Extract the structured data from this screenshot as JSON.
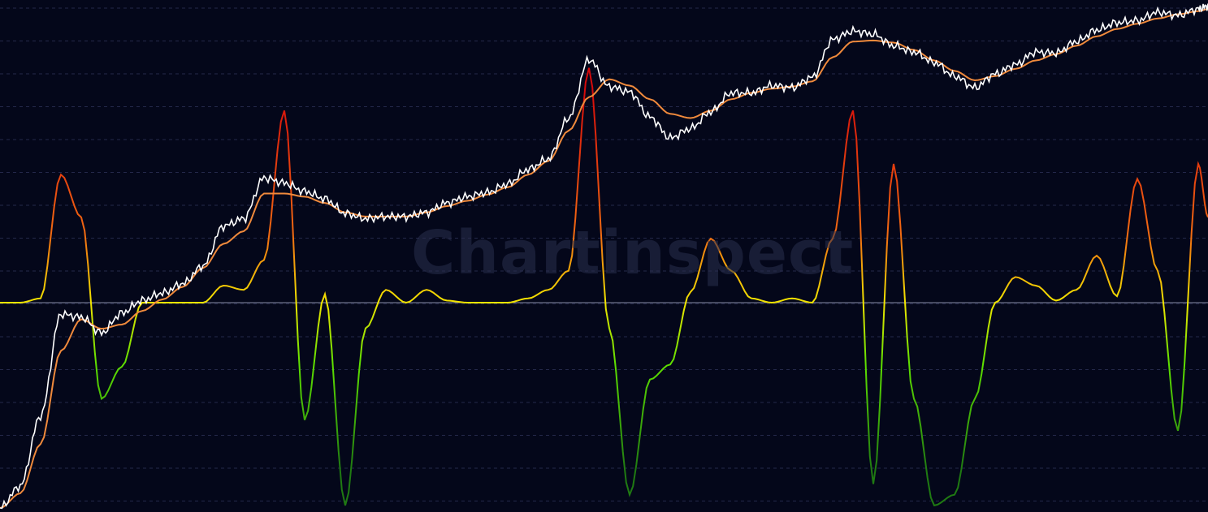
{
  "watermark": {
    "text": "Chartinspect",
    "icon": "chartinspect-logo-icon"
  },
  "colors": {
    "background": "#04071a",
    "grid": "#24284a",
    "zero_line": "#8a8fa8",
    "price": "#ffffff",
    "moving_average": "#f08a3c",
    "oscillator_high": "#d60a0a",
    "oscillator_mid": "#f2e600",
    "oscillator_low": "#1f7a12"
  },
  "chart_data": {
    "type": "line",
    "title": "",
    "xlabel": "",
    "ylabel": "",
    "grid": true,
    "x": [
      0,
      25,
      50,
      75,
      100,
      125,
      150,
      175,
      200,
      225,
      250,
      275,
      300,
      325,
      350,
      375,
      400,
      425,
      450,
      475,
      500,
      525,
      550,
      575,
      600,
      625,
      650,
      675,
      700,
      725,
      750,
      775,
      800,
      825,
      850,
      875,
      900,
      925,
      950,
      975,
      1000,
      1025,
      1050,
      1075,
      1100,
      1125,
      1150,
      1175,
      1200,
      1225,
      1250,
      1275,
      1300,
      1325,
      1350,
      1375,
      1400,
      1425,
      1450,
      1475,
      1487
    ],
    "series": [
      {
        "role": "price",
        "values": [
          0.6,
          0.81,
          1.48,
          2.45,
          2.42,
          2.27,
          2.46,
          2.58,
          2.65,
          2.74,
          2.91,
          3.29,
          3.36,
          3.75,
          3.7,
          3.62,
          3.55,
          3.41,
          3.36,
          3.38,
          3.38,
          3.42,
          3.51,
          3.57,
          3.61,
          3.69,
          3.83,
          3.93,
          4.32,
          4.88,
          4.62,
          4.57,
          4.33,
          4.13,
          4.22,
          4.38,
          4.56,
          4.56,
          4.63,
          4.61,
          4.71,
          5.07,
          5.15,
          5.12,
          5.01,
          4.95,
          4.85,
          4.72,
          4.61,
          4.74,
          4.83,
          4.95,
          4.94,
          5.05,
          5.16,
          5.23,
          5.25,
          5.33,
          5.3,
          5.36,
          5.39
        ]
      },
      {
        "role": "moving_average",
        "values": [
          0.6,
          0.74,
          1.21,
          2.1,
          2.4,
          2.31,
          2.35,
          2.48,
          2.59,
          2.71,
          2.89,
          3.12,
          3.24,
          3.6,
          3.6,
          3.57,
          3.51,
          3.42,
          3.38,
          3.38,
          3.38,
          3.42,
          3.48,
          3.53,
          3.59,
          3.66,
          3.78,
          3.91,
          4.2,
          4.52,
          4.69,
          4.63,
          4.5,
          4.36,
          4.32,
          4.39,
          4.5,
          4.56,
          4.6,
          4.62,
          4.67,
          4.9,
          5.05,
          5.06,
          5.04,
          4.97,
          4.87,
          4.77,
          4.68,
          4.72,
          4.79,
          4.87,
          4.93,
          5.01,
          5.1,
          5.17,
          5.22,
          5.27,
          5.31,
          5.34,
          5.36
        ]
      },
      {
        "role": "oscillator",
        "values": [
          0.0,
          0.0,
          0.02,
          0.6,
          0.4,
          -0.45,
          -0.3,
          0.0,
          0.0,
          0.0,
          0.0,
          0.08,
          0.06,
          0.2,
          0.9,
          -0.55,
          0.04,
          -0.95,
          -0.12,
          0.06,
          0.0,
          0.06,
          0.01,
          0.0,
          0.0,
          0.0,
          0.02,
          0.06,
          0.15,
          1.1,
          -0.12,
          -0.9,
          -0.36,
          -0.29,
          0.05,
          0.3,
          0.15,
          0.02,
          0.0,
          0.02,
          0.0,
          0.3,
          0.9,
          -0.85,
          0.65,
          -0.45,
          -0.95,
          -0.9,
          -0.45,
          0.0,
          0.12,
          0.08,
          0.01,
          0.06,
          0.22,
          0.03,
          0.58,
          0.15,
          -0.6,
          0.65,
          0.4
        ]
      }
    ]
  }
}
